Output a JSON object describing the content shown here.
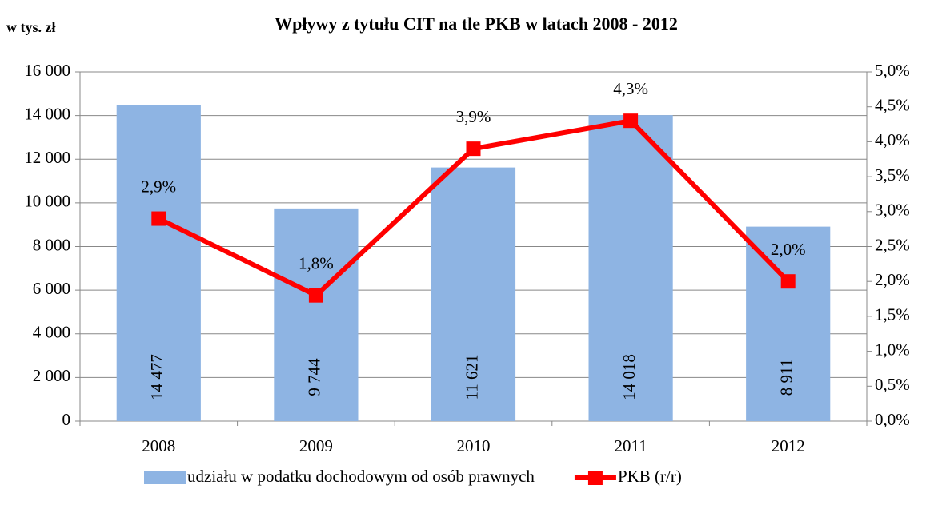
{
  "chart_data": {
    "type": "combo",
    "title": "Wpływy z tytułu CIT na tle PKB w latach 2008 - 2012",
    "y_label": "w tys. zł",
    "categories": [
      "2008",
      "2009",
      "2010",
      "2011",
      "2012"
    ],
    "series": [
      {
        "name": "udziału w podatku dochodowym od osób prawnych",
        "type": "bar",
        "color": "#8eb4e3",
        "values": [
          14477,
          9744,
          11621,
          14018,
          8911
        ],
        "value_labels": [
          "14 477",
          "9 744",
          "11 621",
          "14 018",
          "8 911"
        ]
      },
      {
        "name": "PKB (r/r)",
        "type": "line",
        "axis": "y2",
        "color": "#ff0000",
        "values": [
          2.9,
          1.8,
          3.9,
          4.3,
          2.0
        ],
        "value_labels": [
          "2,9%",
          "1,8%",
          "3,9%",
          "4,3%",
          "2,0%"
        ]
      }
    ],
    "ylim": [
      0,
      16000
    ],
    "yticks": [
      0,
      {
        "value": 2000,
        "label": "2 000"
      },
      {
        "value": 4000,
        "label": "4 000"
      },
      {
        "value": 6000,
        "label": "6 000"
      },
      {
        "value": 8000,
        "label": "8 000"
      },
      {
        "value": 10000,
        "label": "10 000"
      },
      {
        "value": 12000,
        "label": "12 000"
      },
      {
        "value": 14000,
        "label": "14 000"
      },
      {
        "value": 16000,
        "label": "16 000"
      }
    ],
    "y2lim": [
      0,
      5
    ],
    "y2ticks": [
      {
        "value": 0,
        "label": "0,0%"
      },
      {
        "value": 0.5,
        "label": "0,5%"
      },
      {
        "value": 1,
        "label": "1,0%"
      },
      {
        "value": 1.5,
        "label": "1,5%"
      },
      {
        "value": 2,
        "label": "2,0%"
      },
      {
        "value": 2.5,
        "label": "2,5%"
      },
      {
        "value": 3,
        "label": "3,0%"
      },
      {
        "value": 3.5,
        "label": "3,5%"
      },
      {
        "value": 4,
        "label": "4,0%"
      },
      {
        "value": 4.5,
        "label": "4,5%"
      },
      {
        "value": 5,
        "label": "5,0%"
      }
    ],
    "grid": true,
    "legend": "bottom"
  }
}
